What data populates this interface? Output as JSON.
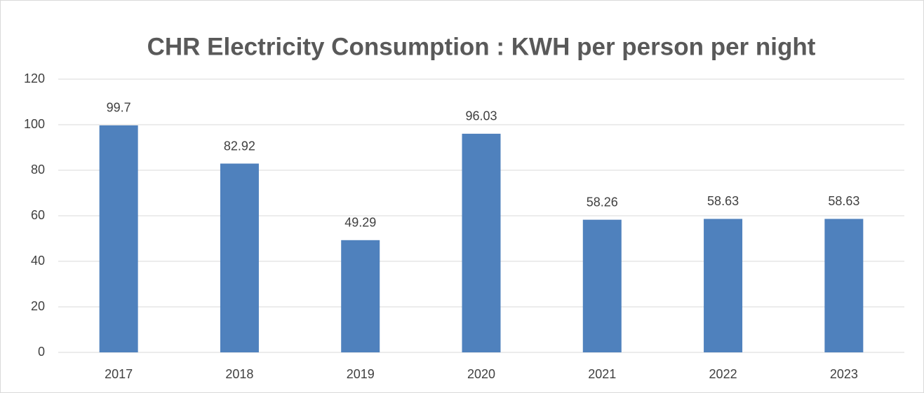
{
  "chart_data": {
    "type": "bar",
    "title": "CHR Electricity Consumption : KWH per person per night",
    "categories": [
      "2017",
      "2018",
      "2019",
      "2020",
      "2021",
      "2022",
      "2023"
    ],
    "values": [
      99.7,
      82.92,
      49.29,
      96.03,
      58.26,
      58.63,
      58.63
    ],
    "color": "#4f81bd",
    "ylim": [
      0,
      120
    ],
    "yticks": [
      0,
      20,
      40,
      60,
      80,
      100,
      120
    ],
    "grid": true,
    "data_labels": true
  }
}
